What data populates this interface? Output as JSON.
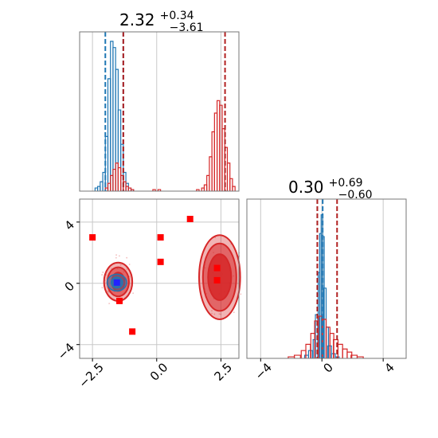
{
  "colors": {
    "blue": "#1f77b4",
    "red": "#d62728",
    "darkred": "#b22222",
    "grid": "#c8c8c8",
    "frame": "#777777"
  },
  "chart_data": [
    {
      "type": "histogram",
      "panel": "marginal-x",
      "title": {
        "main": "2.32",
        "sup": "+0.34",
        "sub": "−3.61"
      },
      "xlim": [
        -3.0,
        3.2
      ],
      "grid": true,
      "series": [
        {
          "color": "blue",
          "bins_x": [
            -2.35,
            -2.25,
            -2.15,
            -2.05,
            -1.95,
            -1.85,
            -1.75,
            -1.65,
            -1.55,
            -1.45,
            -1.35,
            -1.25,
            -1.15,
            -1.05,
            -0.95
          ],
          "heights": [
            0.02,
            0.03,
            0.06,
            0.12,
            0.35,
            0.72,
            0.96,
            0.92,
            0.78,
            0.52,
            0.3,
            0.12,
            0.05,
            0.02,
            0.01
          ],
          "vlines": [
            -2.0,
            -1.3
          ]
        },
        {
          "color": "red",
          "bins_x": [
            -1.95,
            -1.85,
            -1.75,
            -1.65,
            -1.55,
            -1.45,
            -1.35,
            -1.25,
            -1.15,
            -1.05,
            -0.95,
            -0.1,
            0.1,
            1.6,
            1.8,
            1.9,
            2.0,
            2.1,
            2.2,
            2.3,
            2.4,
            2.5,
            2.6,
            2.7,
            2.8,
            2.9,
            3.0
          ],
          "heights": [
            0.02,
            0.05,
            0.1,
            0.14,
            0.18,
            0.15,
            0.1,
            0.06,
            0.03,
            0.02,
            0.01,
            0.01,
            0.01,
            0.01,
            0.02,
            0.04,
            0.1,
            0.22,
            0.38,
            0.5,
            0.58,
            0.55,
            0.4,
            0.28,
            0.18,
            0.08,
            0.03
          ],
          "vlines": [
            -1.3,
            2.66
          ]
        }
      ]
    },
    {
      "type": "scatter",
      "panel": "joint",
      "xlim": [
        -3.0,
        3.2
      ],
      "ylim": [
        -4.9,
        5.5
      ],
      "xticks": [
        "−2.5",
        "0.0",
        "2.5"
      ],
      "xtick_values": [
        -2.5,
        0.0,
        2.5
      ],
      "yticks": [
        "−4",
        "0",
        "4"
      ],
      "ytick_values": [
        -4,
        0,
        4
      ],
      "grid": true,
      "markers_red": [
        [
          -2.5,
          3.0
        ],
        [
          0.15,
          3.0
        ],
        [
          0.15,
          1.4
        ],
        [
          1.3,
          4.2
        ],
        [
          -1.45,
          -1.15
        ],
        [
          -0.95,
          -3.15
        ],
        [
          2.35,
          1.0
        ],
        [
          2.35,
          0.2
        ]
      ],
      "markers_blue": [
        [
          -1.55,
          0.05
        ]
      ],
      "contours_red": [
        {
          "cx": -1.5,
          "cy": 0.1,
          "rx": 0.55,
          "ry": 1.25,
          "level": 1
        },
        {
          "cx": -1.5,
          "cy": 0.1,
          "rx": 0.42,
          "ry": 0.95,
          "level": 2
        },
        {
          "cx": -1.5,
          "cy": 0.1,
          "rx": 0.25,
          "ry": 0.6,
          "level": 3
        },
        {
          "cx": 2.45,
          "cy": 0.4,
          "rx": 0.8,
          "ry": 2.75,
          "level": 1
        },
        {
          "cx": 2.45,
          "cy": 0.4,
          "rx": 0.65,
          "ry": 2.2,
          "level": 2
        },
        {
          "cx": 2.45,
          "cy": 0.4,
          "rx": 0.45,
          "ry": 1.5,
          "level": 3
        }
      ],
      "contours_blue": [
        {
          "cx": -1.55,
          "cy": 0.05,
          "rx": 0.38,
          "ry": 0.55,
          "level": 1
        },
        {
          "cx": -1.55,
          "cy": 0.05,
          "rx": 0.22,
          "ry": 0.35,
          "level": 2
        }
      ]
    },
    {
      "type": "histogram",
      "panel": "marginal-y",
      "title": {
        "main": "0.30",
        "sup": "+0.69",
        "sub": "−0.60"
      },
      "xlim": [
        -4.9,
        5.5
      ],
      "xticks": [
        "−4",
        "0",
        "4"
      ],
      "xtick_values": [
        -4,
        0,
        4
      ],
      "grid": true,
      "series": [
        {
          "color": "blue",
          "bins_x": [
            -1.0,
            -0.75,
            -0.5,
            -0.35,
            -0.2,
            -0.1,
            0.0,
            0.1,
            0.2,
            0.35,
            0.5,
            0.75,
            1.0
          ],
          "heights": [
            0.02,
            0.05,
            0.12,
            0.28,
            0.55,
            0.8,
            0.92,
            0.78,
            0.45,
            0.2,
            0.08,
            0.03,
            0.01
          ],
          "vlines": [
            -0.3,
            0.05
          ]
        },
        {
          "color": "red",
          "bins_x": [
            -2.0,
            -1.6,
            -1.2,
            -0.9,
            -0.6,
            -0.35,
            -0.1,
            0.15,
            0.4,
            0.65,
            0.9,
            1.2,
            1.5,
            1.8,
            2.1,
            2.5
          ],
          "heights": [
            0.01,
            0.02,
            0.05,
            0.09,
            0.16,
            0.24,
            0.27,
            0.25,
            0.2,
            0.16,
            0.12,
            0.09,
            0.06,
            0.04,
            0.02,
            0.01
          ],
          "vlines": [
            -0.3,
            0.99
          ]
        }
      ]
    }
  ]
}
